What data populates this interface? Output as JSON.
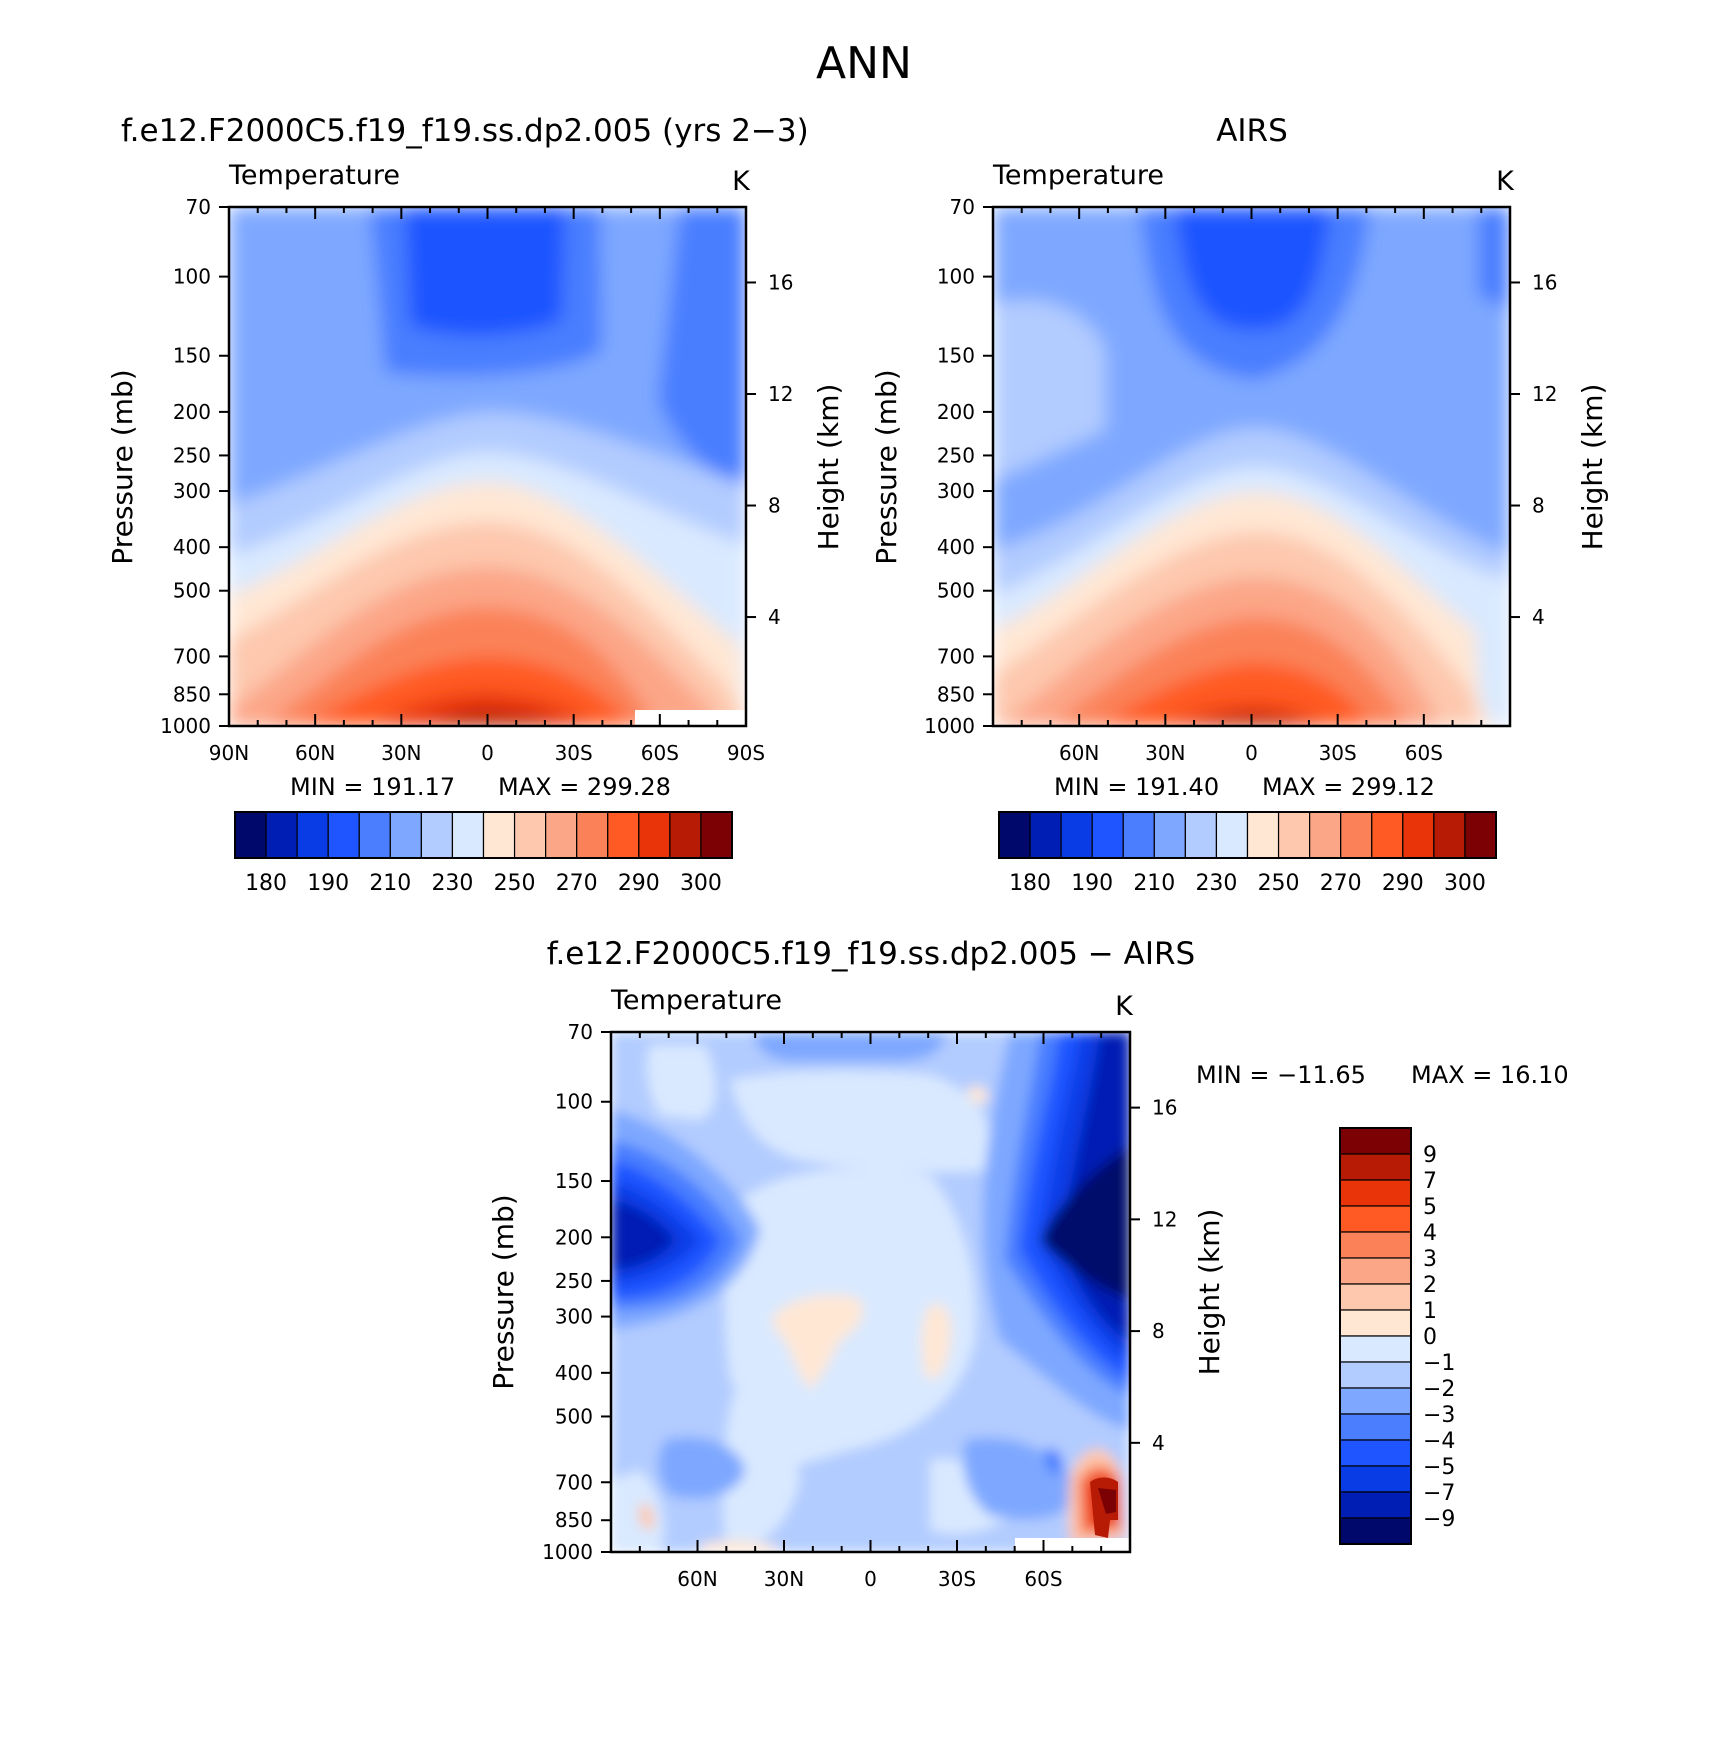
{
  "figure": {
    "title": "ANN"
  },
  "chart_data": [
    {
      "type": "heatmap",
      "panel": "model",
      "title": "f.e12.F2000C5.f19_f19.ss.dp2.005 (yrs 2−3)",
      "variable_label": "Temperature",
      "units": "K",
      "ylabel": "Pressure (mb)",
      "ylabel_right": "Height (km)",
      "x_ticks": [
        "90N",
        "60N",
        "30N",
        "0",
        "30S",
        "60S",
        "90S"
      ],
      "x_range": [
        90,
        -90
      ],
      "y_ticks": [
        "70",
        "100",
        "150",
        "200",
        "250",
        "300",
        "400",
        "500",
        "700",
        "850",
        "1000"
      ],
      "y_range_mb": [
        70,
        1000
      ],
      "y_scale": "log",
      "height_ticks_km": [
        "4",
        "8",
        "12",
        "16"
      ],
      "min_label": "MIN = 191.17",
      "max_label": "MAX = 299.28",
      "min": 191.17,
      "max": 299.28,
      "colorbar": {
        "labels": [
          "180",
          "190",
          "210",
          "230",
          "250",
          "270",
          "290",
          "300"
        ],
        "colors": [
          "#00086b",
          "#001eb4",
          "#0a3ce6",
          "#1e55ff",
          "#4a7eff",
          "#7ea8ff",
          "#b2ccff",
          "#d9e9ff",
          "#ffe7d4",
          "#fdc8ae",
          "#fca688",
          "#fb8258",
          "#ff5a24",
          "#e93409",
          "#b71b05",
          "#7c0104"
        ]
      }
    },
    {
      "type": "heatmap",
      "panel": "obs",
      "title": "AIRS",
      "variable_label": "Temperature",
      "units": "K",
      "ylabel": "Pressure (mb)",
      "ylabel_right": "Height (km)",
      "x_ticks": [
        "60N",
        "30N",
        "0",
        "30S",
        "60S"
      ],
      "x_range": [
        90,
        -90
      ],
      "y_ticks": [
        "70",
        "100",
        "150",
        "200",
        "250",
        "300",
        "400",
        "500",
        "700",
        "850",
        "1000"
      ],
      "y_range_mb": [
        70,
        1000
      ],
      "y_scale": "log",
      "height_ticks_km": [
        "4",
        "8",
        "12",
        "16"
      ],
      "min_label": "MIN = 191.40",
      "max_label": "MAX = 299.12",
      "min": 191.4,
      "max": 299.12,
      "colorbar": {
        "labels": [
          "180",
          "190",
          "210",
          "230",
          "250",
          "270",
          "290",
          "300"
        ],
        "colors": [
          "#00086b",
          "#001eb4",
          "#0a3ce6",
          "#1e55ff",
          "#4a7eff",
          "#7ea8ff",
          "#b2ccff",
          "#d9e9ff",
          "#ffe7d4",
          "#fdc8ae",
          "#fca688",
          "#fb8258",
          "#ff5a24",
          "#e93409",
          "#b71b05",
          "#7c0104"
        ]
      }
    },
    {
      "type": "heatmap",
      "panel": "difference",
      "title": "f.e12.F2000C5.f19_f19.ss.dp2.005 − AIRS",
      "variable_label": "Temperature",
      "units": "K",
      "ylabel": "Pressure (mb)",
      "ylabel_right": "Height (km)",
      "x_ticks": [
        "60N",
        "30N",
        "0",
        "30S",
        "60S"
      ],
      "x_range": [
        90,
        -90
      ],
      "y_ticks": [
        "70",
        "100",
        "150",
        "200",
        "250",
        "300",
        "400",
        "500",
        "700",
        "850",
        "1000"
      ],
      "y_range_mb": [
        70,
        1000
      ],
      "y_scale": "log",
      "height_ticks_km": [
        "4",
        "8",
        "12",
        "16"
      ],
      "min_label": "MIN = −11.65",
      "max_label": "MAX =  16.10",
      "min": -11.65,
      "max": 16.1,
      "colorbar": {
        "labels": [
          "9",
          "7",
          "5",
          "4",
          "3",
          "2",
          "1",
          "0",
          "−1",
          "−2",
          "−3",
          "−4",
          "−5",
          "−7",
          "−9"
        ],
        "colors": [
          "#7c0104",
          "#b71b05",
          "#e93409",
          "#ff5a24",
          "#fb8258",
          "#fca688",
          "#fdc8ae",
          "#ffe7d4",
          "#d9e9ff",
          "#b2ccff",
          "#7ea8ff",
          "#4a7eff",
          "#1e55ff",
          "#0a3ce6",
          "#001eb4",
          "#00086b"
        ]
      }
    }
  ]
}
